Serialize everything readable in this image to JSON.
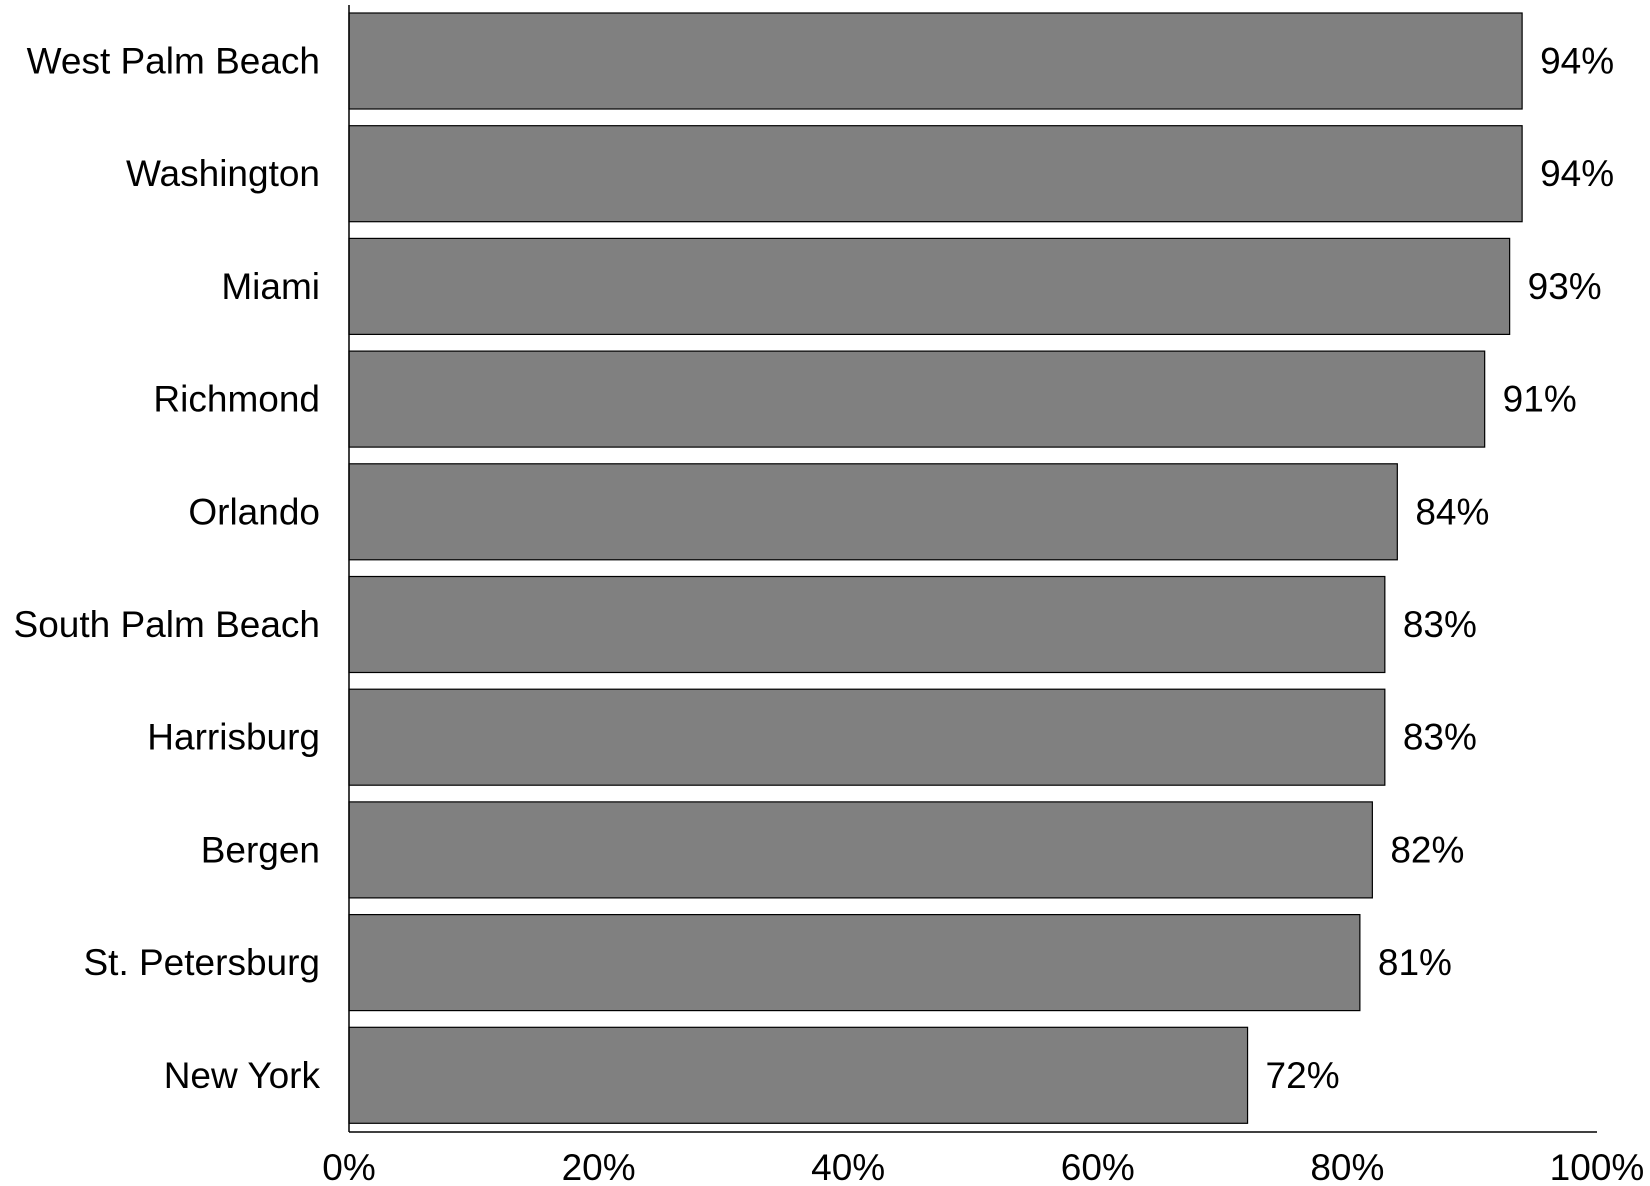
{
  "chart_data": {
    "type": "bar",
    "orientation": "horizontal",
    "title": "",
    "xlabel": "",
    "ylabel": "",
    "categories": [
      "West Palm Beach",
      "Washington",
      "Miami",
      "Richmond",
      "Orlando",
      "South Palm Beach",
      "Harrisburg",
      "Bergen",
      "St. Petersburg",
      "New York"
    ],
    "values": [
      94,
      94,
      93,
      91,
      84,
      83,
      83,
      82,
      81,
      72
    ],
    "value_labels": [
      "94%",
      "94%",
      "93%",
      "91%",
      "84%",
      "83%",
      "83%",
      "82%",
      "81%",
      "72%"
    ],
    "xlim": [
      0,
      100
    ],
    "xticks": [
      0,
      20,
      40,
      60,
      80,
      100
    ],
    "xtick_labels": [
      "0%",
      "20%",
      "40%",
      "60%",
      "80%",
      "100%"
    ],
    "grid": false,
    "legend": "none",
    "bar_color": "#808080"
  }
}
